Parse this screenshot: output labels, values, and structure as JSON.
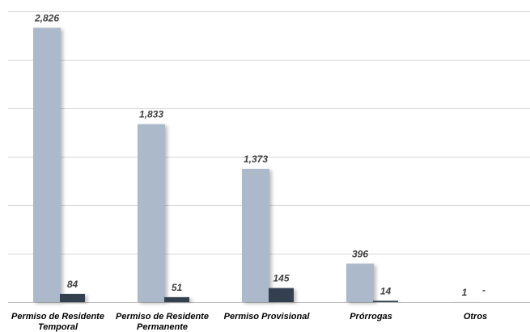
{
  "chart_data": {
    "type": "bar",
    "title": "",
    "xlabel": "",
    "ylabel": "",
    "ylim": [
      0,
      3000
    ],
    "grid": true,
    "legend": "none",
    "categories": [
      [
        "Permiso de Residente",
        "Temporal"
      ],
      [
        "Permiso de Residente",
        "Permanente"
      ],
      [
        "Permiso Provisional"
      ],
      [
        "Prórrogas"
      ],
      [
        "Otros"
      ]
    ],
    "series": [
      {
        "color": "#acb9ca",
        "values": [
          2826,
          1833,
          1373,
          396,
          1
        ],
        "labels": [
          "2,826",
          "1,833",
          "1,373",
          "396",
          "1"
        ]
      },
      {
        "color": "#323f4f",
        "values": [
          84,
          51,
          145,
          14,
          0
        ],
        "labels": [
          "84",
          "51",
          "145",
          "14",
          "-"
        ]
      }
    ]
  }
}
